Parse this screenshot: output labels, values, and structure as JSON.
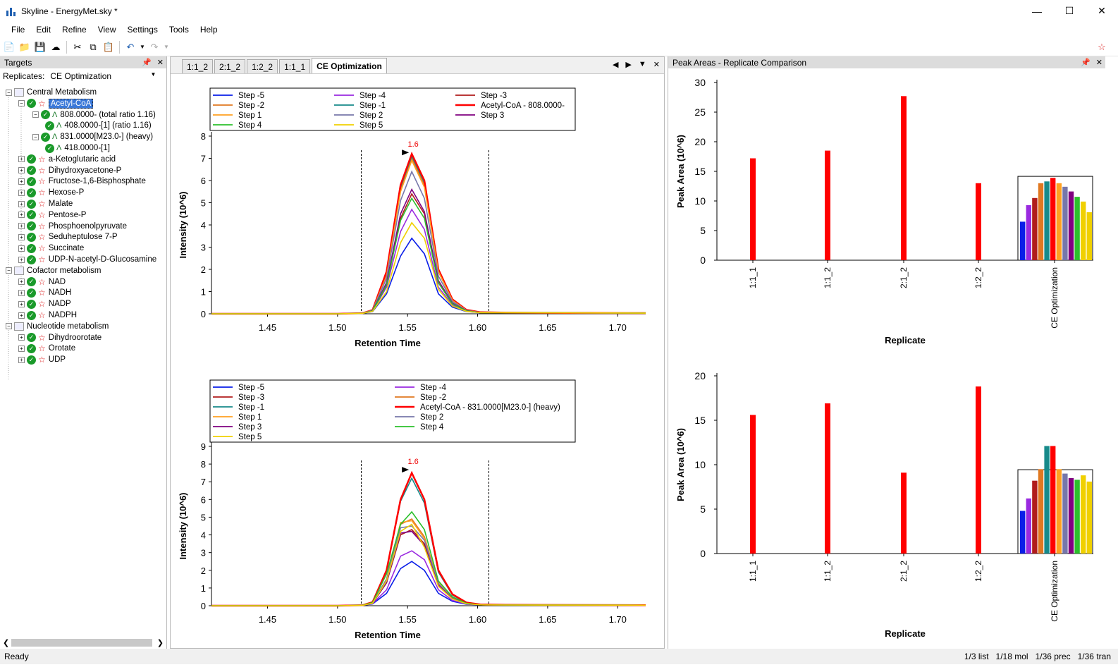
{
  "window": {
    "title": "Skyline - EnergyMet.sky *"
  },
  "menu": [
    "File",
    "Edit",
    "Refine",
    "View",
    "Settings",
    "Tools",
    "Help"
  ],
  "targets_panel": {
    "title": "Targets",
    "replicates_label": "Replicates:",
    "replicate_value": "CE Optimization"
  },
  "tree": [
    {
      "label": "Central Metabolism",
      "kind": "group",
      "level": 0
    },
    {
      "label": "Acetyl-CoA",
      "kind": "molecule",
      "level": 1,
      "selected": true
    },
    {
      "label": "808.0000- (total ratio 1.16)",
      "kind": "precursor",
      "level": 2
    },
    {
      "label": "408.0000-[1] (ratio 1.16)",
      "kind": "transition",
      "level": 3
    },
    {
      "label": "831.0000[M23.0-] (heavy)",
      "kind": "precursor",
      "level": 2
    },
    {
      "label": "418.0000-[1]",
      "kind": "transition",
      "level": 3
    },
    {
      "label": "a-Ketoglutaric acid",
      "kind": "molecule",
      "level": 1
    },
    {
      "label": "Dihydroxyacetone-P",
      "kind": "molecule",
      "level": 1
    },
    {
      "label": "Fructose-1,6-Bisphosphate",
      "kind": "molecule",
      "level": 1
    },
    {
      "label": "Hexose-P",
      "kind": "molecule",
      "level": 1
    },
    {
      "label": "Malate",
      "kind": "molecule",
      "level": 1
    },
    {
      "label": "Pentose-P",
      "kind": "molecule",
      "level": 1
    },
    {
      "label": "Phosphoenolpyruvate",
      "kind": "molecule",
      "level": 1
    },
    {
      "label": "Seduheptulose 7-P",
      "kind": "molecule",
      "level": 1
    },
    {
      "label": "Succinate",
      "kind": "molecule",
      "level": 1
    },
    {
      "label": "UDP-N-acetyl-D-Glucosamine",
      "kind": "molecule",
      "level": 1
    },
    {
      "label": "Cofactor metabolism",
      "kind": "group",
      "level": 0
    },
    {
      "label": "NAD",
      "kind": "molecule",
      "level": 1
    },
    {
      "label": "NADH",
      "kind": "molecule",
      "level": 1
    },
    {
      "label": "NADP",
      "kind": "molecule",
      "level": 1
    },
    {
      "label": "NADPH",
      "kind": "molecule",
      "level": 1
    },
    {
      "label": "Nucleotide metabolism",
      "kind": "group",
      "level": 0
    },
    {
      "label": "Dihydroorotate",
      "kind": "molecule",
      "level": 1
    },
    {
      "label": "Orotate",
      "kind": "molecule",
      "level": 1
    },
    {
      "label": "UDP",
      "kind": "molecule",
      "level": 1
    }
  ],
  "doc_tabs": [
    "1:1_2",
    "2:1_2",
    "1:2_2",
    "1:1_1",
    "CE Optimization"
  ],
  "right_panel": {
    "title": "Peak Areas - Replicate Comparison"
  },
  "chart_data": [
    {
      "type": "line",
      "id": "chrom1",
      "xlabel": "Retention Time",
      "ylabel": "Intensity (10^6)",
      "xlim": [
        1.41,
        1.72
      ],
      "ylim": [
        0,
        8
      ],
      "xticks": [
        1.45,
        1.5,
        1.55,
        1.6,
        1.65,
        1.7
      ],
      "xtick_labels": [
        "1.45",
        "1.50",
        "1.55",
        "1.60",
        "1.65",
        "1.70"
      ],
      "yticks": [
        0,
        1,
        2,
        3,
        4,
        5,
        6,
        7,
        8
      ],
      "peak_label": "1.6",
      "peak_label_x": 1.553,
      "peak_label_y": 7.2,
      "boundaries": [
        1.517,
        1.608
      ],
      "x": [
        1.41,
        1.5,
        1.518,
        1.525,
        1.535,
        1.545,
        1.553,
        1.562,
        1.572,
        1.582,
        1.592,
        1.602,
        1.62,
        1.72
      ],
      "legend": [
        "Step -5",
        "Step -4",
        "Step -3",
        "Step -2",
        "Step -1",
        "Acetyl-CoA - 808.0000-",
        "Step 1",
        "Step 2",
        "Step 3",
        "Step 4",
        "Step 5"
      ],
      "series": [
        {
          "name": "Step -5",
          "color": "#0a1ee8",
          "values": [
            0,
            0,
            0.02,
            0.1,
            0.9,
            2.6,
            3.4,
            2.7,
            0.9,
            0.3,
            0.1,
            0.05,
            0.05,
            0.03
          ]
        },
        {
          "name": "Step -4",
          "color": "#9a2ae0",
          "values": [
            0,
            0,
            0.02,
            0.12,
            1.2,
            3.7,
            4.7,
            3.8,
            1.2,
            0.4,
            0.12,
            0.05,
            0.05,
            0.03
          ]
        },
        {
          "name": "Step -3",
          "color": "#b01c1c",
          "values": [
            0,
            0,
            0.02,
            0.14,
            1.3,
            4.3,
            5.4,
            4.5,
            1.4,
            0.45,
            0.13,
            0.05,
            0.05,
            0.03
          ]
        },
        {
          "name": "Step -2",
          "color": "#e07820",
          "values": [
            0,
            0,
            0.03,
            0.16,
            1.8,
            5.6,
            7.0,
            5.8,
            1.9,
            0.6,
            0.16,
            0.06,
            0.05,
            0.03
          ]
        },
        {
          "name": "Step -1",
          "color": "#178a8a",
          "values": [
            0,
            0,
            0.03,
            0.16,
            1.8,
            5.7,
            7.1,
            5.9,
            1.9,
            0.6,
            0.16,
            0.06,
            0.05,
            0.03
          ]
        },
        {
          "name": "Acetyl-CoA - 808.0000-",
          "color": "#ff0000",
          "width": 2.5,
          "values": [
            0,
            0,
            0.03,
            0.17,
            1.9,
            5.8,
            7.2,
            6.0,
            2.0,
            0.65,
            0.18,
            0.07,
            0.05,
            0.03
          ]
        },
        {
          "name": "Step 1",
          "color": "#ffa020",
          "values": [
            0,
            0,
            0.03,
            0.16,
            1.7,
            5.5,
            6.9,
            5.7,
            1.9,
            0.6,
            0.16,
            0.06,
            0.05,
            0.03
          ]
        },
        {
          "name": "Step 2",
          "color": "#7777aa",
          "values": [
            0,
            0,
            0.03,
            0.15,
            1.6,
            5.1,
            6.4,
            5.2,
            1.7,
            0.55,
            0.15,
            0.06,
            0.05,
            0.03
          ]
        },
        {
          "name": "Step 3",
          "color": "#800080",
          "values": [
            0,
            0,
            0.02,
            0.14,
            1.4,
            4.5,
            5.6,
            4.6,
            1.5,
            0.48,
            0.14,
            0.05,
            0.05,
            0.03
          ]
        },
        {
          "name": "Step 4",
          "color": "#2cc02c",
          "values": [
            0,
            0,
            0.02,
            0.13,
            1.3,
            4.2,
            5.2,
            4.3,
            1.4,
            0.45,
            0.13,
            0.05,
            0.05,
            0.03
          ]
        },
        {
          "name": "Step 5",
          "color": "#f0d000",
          "values": [
            0,
            0,
            0.02,
            0.11,
            1.0,
            3.2,
            4.1,
            3.4,
            1.1,
            0.35,
            0.11,
            0.05,
            0.05,
            0.03
          ]
        }
      ]
    },
    {
      "type": "line",
      "id": "chrom2",
      "xlabel": "Retention Time",
      "ylabel": "Intensity (10^6)",
      "xlim": [
        1.41,
        1.72
      ],
      "ylim": [
        0,
        9
      ],
      "xticks": [
        1.45,
        1.5,
        1.55,
        1.6,
        1.65,
        1.7
      ],
      "xtick_labels": [
        "1.45",
        "1.50",
        "1.55",
        "1.60",
        "1.65",
        "1.70"
      ],
      "yticks": [
        0,
        1,
        2,
        3,
        4,
        5,
        6,
        7,
        8,
        9
      ],
      "peak_label": "1.6",
      "peak_label_x": 1.553,
      "peak_label_y": 7.6,
      "boundaries": [
        1.517,
        1.608
      ],
      "x": [
        1.41,
        1.5,
        1.518,
        1.525,
        1.535,
        1.545,
        1.553,
        1.562,
        1.572,
        1.582,
        1.592,
        1.602,
        1.62,
        1.72
      ],
      "legend": [
        "Step -5",
        "Step -4",
        "Step -3",
        "Step -2",
        "Step -1",
        "Acetyl-CoA - 831.0000[M23.0-] (heavy)",
        "Step 1",
        "Step 2",
        "Step 3",
        "Step 4",
        "Step 5"
      ],
      "series": [
        {
          "name": "Step -5",
          "color": "#0a1ee8",
          "values": [
            0,
            0,
            0.02,
            0.1,
            0.7,
            2.1,
            2.5,
            2.0,
            0.7,
            0.25,
            0.08,
            0.05,
            0.04,
            0.03
          ]
        },
        {
          "name": "Step -4",
          "color": "#9a2ae0",
          "values": [
            0,
            0,
            0.02,
            0.12,
            0.9,
            2.8,
            3.1,
            2.6,
            0.9,
            0.3,
            0.1,
            0.05,
            0.04,
            0.03
          ]
        },
        {
          "name": "Step -3",
          "color": "#b01c1c",
          "values": [
            0,
            0,
            0.02,
            0.14,
            1.3,
            4.0,
            4.3,
            3.5,
            1.2,
            0.4,
            0.12,
            0.05,
            0.04,
            0.03
          ]
        },
        {
          "name": "Step -2",
          "color": "#e07820",
          "values": [
            0,
            0,
            0.03,
            0.16,
            1.5,
            4.6,
            4.9,
            3.9,
            1.3,
            0.45,
            0.13,
            0.05,
            0.04,
            0.03
          ]
        },
        {
          "name": "Step -1",
          "color": "#178a8a",
          "values": [
            0,
            0,
            0.03,
            0.2,
            2.0,
            5.9,
            7.2,
            5.8,
            1.9,
            0.6,
            0.16,
            0.06,
            0.05,
            0.03
          ]
        },
        {
          "name": "Acetyl-CoA - 831.0000[M23.0-] (heavy)",
          "color": "#ff0000",
          "width": 2.5,
          "values": [
            0,
            0,
            0.03,
            0.2,
            2.0,
            6.0,
            7.5,
            6.0,
            2.0,
            0.65,
            0.18,
            0.07,
            0.05,
            0.03
          ]
        },
        {
          "name": "Step 1",
          "color": "#ffa020",
          "values": [
            0,
            0,
            0.03,
            0.16,
            1.5,
            4.7,
            4.8,
            3.8,
            1.3,
            0.45,
            0.13,
            0.05,
            0.04,
            0.03
          ]
        },
        {
          "name": "Step 2",
          "color": "#7777aa",
          "values": [
            0,
            0,
            0.03,
            0.15,
            1.5,
            4.4,
            4.5,
            3.7,
            1.25,
            0.42,
            0.12,
            0.05,
            0.04,
            0.03
          ]
        },
        {
          "name": "Step 3",
          "color": "#800080",
          "values": [
            0,
            0,
            0.02,
            0.14,
            1.3,
            4.1,
            4.2,
            3.4,
            1.15,
            0.4,
            0.12,
            0.05,
            0.04,
            0.03
          ]
        },
        {
          "name": "Step 4",
          "color": "#2cc02c",
          "values": [
            0,
            0,
            0.03,
            0.18,
            1.8,
            4.6,
            5.3,
            4.3,
            1.4,
            0.5,
            0.14,
            0.05,
            0.04,
            0.03
          ]
        },
        {
          "name": "Step 5",
          "color": "#f0d000",
          "values": [
            0,
            0,
            0.02,
            0.14,
            1.4,
            4.2,
            4.6,
            3.3,
            1.1,
            0.38,
            0.11,
            0.05,
            0.04,
            0.03
          ]
        }
      ]
    },
    {
      "type": "bar",
      "id": "bar1",
      "xlabel": "Replicate",
      "ylabel": "Peak Area (10^6)",
      "ylim": [
        0,
        30
      ],
      "yticks": [
        0,
        5,
        10,
        15,
        20,
        25,
        30
      ],
      "categories": [
        "1:1_1",
        "1:1_2",
        "2:1_2",
        "1:2_2",
        "CE Optimization"
      ],
      "values": [
        17.2,
        18.5,
        27.7,
        13.0,
        null
      ],
      "bar_color": "#ff0000",
      "ce_step_values": [
        6.5,
        9.3,
        10.5,
        13.0,
        13.3,
        13.9,
        13.0,
        12.4,
        11.6,
        10.7,
        9.9,
        8.1
      ],
      "ce_step_colors": [
        "#0a1ee8",
        "#9a2ae0",
        "#b01c1c",
        "#e07820",
        "#178a8a",
        "#ff0000",
        "#ffa020",
        "#7777aa",
        "#800080",
        "#2cc02c",
        "#f0d000",
        "#f0d000"
      ]
    },
    {
      "type": "bar",
      "id": "bar2",
      "xlabel": "Replicate",
      "ylabel": "Peak Area (10^6)",
      "ylim": [
        0,
        20
      ],
      "yticks": [
        0,
        5,
        10,
        15,
        20
      ],
      "categories": [
        "1:1_1",
        "1:1_2",
        "2:1_2",
        "1:2_2",
        "CE Optimization"
      ],
      "values": [
        15.6,
        16.9,
        9.1,
        18.8,
        null
      ],
      "bar_color": "#ff0000",
      "ce_step_values": [
        4.8,
        6.2,
        8.2,
        9.5,
        12.1,
        12.1,
        9.5,
        9.0,
        8.5,
        8.3,
        8.8,
        8.1
      ],
      "ce_step_colors": [
        "#0a1ee8",
        "#9a2ae0",
        "#b01c1c",
        "#e07820",
        "#178a8a",
        "#ff0000",
        "#ffa020",
        "#7777aa",
        "#800080",
        "#2cc02c",
        "#f0d000",
        "#f0d000"
      ]
    }
  ],
  "status": {
    "left": "Ready",
    "stats": [
      "1/3 list",
      "1/18 mol",
      "1/36 prec",
      "1/36 tran"
    ]
  }
}
